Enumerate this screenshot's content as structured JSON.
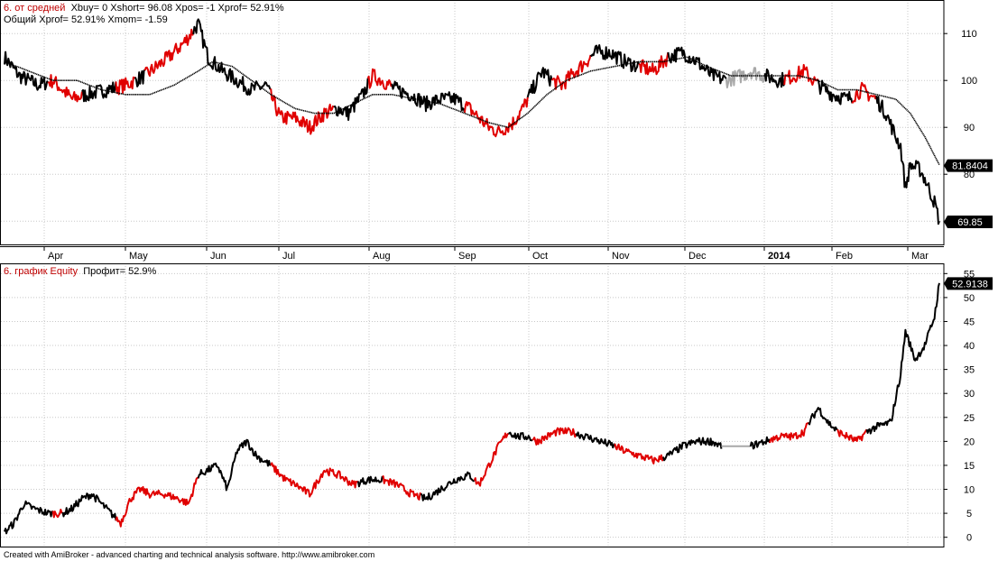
{
  "colors": {
    "background": "#ffffff",
    "grid": "#c8c8c8",
    "long_line": "#000000",
    "short_line": "#e00000",
    "flat_line": "#a8a8a8",
    "ma_line": "#000000",
    "legend_red": "#c00000",
    "value_tag_bg": "#000000",
    "value_tag_fg": "#ffffff"
  },
  "top_pane": {
    "title": "6. от средней",
    "params_line1": "Xbuy= 0  Xshort= 96.08  Xpos= -1  Xprof= 52.91%",
    "params_line2": "Общий Xprof= 52.91%  Xmom= -1.59"
  },
  "bottom_pane": {
    "title": "6. график Equity",
    "params": "Профит= 52.9%"
  },
  "footer": "Created with AmiBroker - advanced charting and technical analysis software. http://www.amibroker.com",
  "x_axis": {
    "labels": [
      "Apr",
      "May",
      "Jun",
      "Jul",
      "Aug",
      "Sep",
      "Oct",
      "Nov",
      "Dec",
      "2014",
      "Feb",
      "Mar"
    ]
  },
  "chart_data": [
    {
      "type": "line",
      "pane": "price",
      "x_labels": [
        "Apr",
        "May",
        "Jun",
        "Jul",
        "Aug",
        "Sep",
        "Oct",
        "Nov",
        "Dec",
        "2014",
        "Feb",
        "Mar"
      ],
      "ylim": [
        66,
        116
      ],
      "y_ticks": [
        70,
        80,
        90,
        100,
        110
      ],
      "grid": true,
      "value_tags": [
        "81.8404",
        "69.85"
      ],
      "series": [
        {
          "role": "price",
          "anchors": [
            [
              0,
              105
            ],
            [
              3,
              101
            ],
            [
              7,
              99
            ],
            [
              10,
              100
            ],
            [
              14,
              96
            ],
            [
              17,
              97
            ],
            [
              21,
              98
            ],
            [
              25,
              99
            ],
            [
              29,
              101
            ],
            [
              34,
              105
            ],
            [
              37,
              108
            ],
            [
              40,
              112
            ],
            [
              42,
              105
            ],
            [
              45,
              102
            ],
            [
              48,
              100
            ],
            [
              51,
              98
            ],
            [
              54,
              99
            ],
            [
              57,
              92
            ],
            [
              60,
              92
            ],
            [
              63,
              90
            ],
            [
              66,
              93
            ],
            [
              69,
              94
            ],
            [
              71,
              93
            ],
            [
              74,
              97
            ],
            [
              76,
              101
            ],
            [
              78,
              100
            ],
            [
              81,
              98
            ],
            [
              84,
              97
            ],
            [
              87,
              95
            ],
            [
              90,
              96
            ],
            [
              93,
              96
            ],
            [
              96,
              94
            ],
            [
              98,
              92
            ],
            [
              100,
              90
            ],
            [
              102,
              89
            ],
            [
              105,
              91
            ],
            [
              107,
              94
            ],
            [
              109,
              98
            ],
            [
              111,
              102
            ],
            [
              113,
              100
            ],
            [
              115,
              99
            ],
            [
              117,
              101
            ],
            [
              119,
              103
            ],
            [
              122,
              106
            ],
            [
              125,
              106
            ],
            [
              128,
              104
            ],
            [
              131,
              103
            ],
            [
              134,
              102
            ],
            [
              137,
              105
            ],
            [
              140,
              106
            ],
            [
              143,
              104
            ],
            [
              146,
              101
            ],
            [
              149,
              100
            ],
            [
              152,
              101
            ],
            [
              154,
              102
            ],
            [
              157,
              101
            ],
            [
              160,
              100
            ],
            [
              163,
              101
            ],
            [
              165,
              102
            ],
            [
              168,
              99
            ],
            [
              171,
              97
            ],
            [
              174,
              96
            ],
            [
              177,
              98
            ],
            [
              180,
              96
            ],
            [
              182,
              93
            ],
            [
              184,
              88
            ],
            [
              185,
              86
            ],
            [
              186,
              77
            ],
            [
              187,
              82
            ],
            [
              189,
              81
            ],
            [
              190,
              79
            ],
            [
              192,
              74
            ],
            [
              193,
              70
            ]
          ],
          "segments": [
            {
              "from": 0,
              "to": 9,
              "color": "long"
            },
            {
              "from": 9,
              "to": 16,
              "color": "short"
            },
            {
              "from": 16,
              "to": 23,
              "color": "long"
            },
            {
              "from": 23,
              "to": 27,
              "color": "short"
            },
            {
              "from": 27,
              "to": 29,
              "color": "long"
            },
            {
              "from": 29,
              "to": 39,
              "color": "short"
            },
            {
              "from": 39,
              "to": 55,
              "color": "long"
            },
            {
              "from": 55,
              "to": 68,
              "color": "short"
            },
            {
              "from": 68,
              "to": 75,
              "color": "long"
            },
            {
              "from": 75,
              "to": 80,
              "color": "short"
            },
            {
              "from": 80,
              "to": 95,
              "color": "long"
            },
            {
              "from": 95,
              "to": 108,
              "color": "short"
            },
            {
              "from": 108,
              "to": 113,
              "color": "long"
            },
            {
              "from": 113,
              "to": 121,
              "color": "short"
            },
            {
              "from": 121,
              "to": 131,
              "color": "long"
            },
            {
              "from": 131,
              "to": 137,
              "color": "short"
            },
            {
              "from": 137,
              "to": 149,
              "color": "long"
            },
            {
              "from": 149,
              "to": 157,
              "color": "flat"
            },
            {
              "from": 157,
              "to": 161,
              "color": "long"
            },
            {
              "from": 161,
              "to": 168,
              "color": "short"
            },
            {
              "from": 168,
              "to": 175,
              "color": "long"
            },
            {
              "from": 175,
              "to": 180,
              "color": "short"
            },
            {
              "from": 180,
              "to": 193,
              "color": "long"
            }
          ]
        },
        {
          "role": "moving_average",
          "anchors": [
            [
              0,
              104
            ],
            [
              5,
              102
            ],
            [
              10,
              100
            ],
            [
              15,
              100
            ],
            [
              20,
              98
            ],
            [
              25,
              97
            ],
            [
              30,
              97
            ],
            [
              35,
              99
            ],
            [
              40,
              102
            ],
            [
              43,
              104
            ],
            [
              47,
              103
            ],
            [
              51,
              100
            ],
            [
              55,
              97
            ],
            [
              60,
              94
            ],
            [
              64,
              93
            ],
            [
              68,
              93
            ],
            [
              72,
              95
            ],
            [
              76,
              97
            ],
            [
              80,
              97
            ],
            [
              85,
              96
            ],
            [
              90,
              95
            ],
            [
              95,
              93
            ],
            [
              100,
              91
            ],
            [
              104,
              90
            ],
            [
              108,
              93
            ],
            [
              112,
              97
            ],
            [
              116,
              100
            ],
            [
              121,
              102
            ],
            [
              126,
              103
            ],
            [
              131,
              104
            ],
            [
              136,
              104
            ],
            [
              141,
              105
            ],
            [
              145,
              103
            ],
            [
              150,
              101
            ],
            [
              155,
              101
            ],
            [
              160,
              101
            ],
            [
              164,
              101
            ],
            [
              168,
              100
            ],
            [
              172,
              98
            ],
            [
              176,
              98
            ],
            [
              180,
              97
            ],
            [
              184,
              96
            ],
            [
              187,
              93
            ],
            [
              190,
              88
            ],
            [
              193,
              82
            ]
          ]
        }
      ]
    },
    {
      "type": "line",
      "pane": "equity",
      "x_labels": [
        "Apr",
        "May",
        "Jun",
        "Jul",
        "Aug",
        "Sep",
        "Oct",
        "Nov",
        "Dec",
        "2014",
        "Feb",
        "Mar"
      ],
      "ylim": [
        -1,
        56
      ],
      "y_ticks": [
        0,
        5,
        10,
        15,
        20,
        25,
        30,
        35,
        40,
        45,
        50,
        55
      ],
      "grid": true,
      "value_tags": [
        "52.9138"
      ],
      "series": [
        {
          "role": "equity",
          "anchors": [
            [
              0,
              1
            ],
            [
              2,
              3
            ],
            [
              4,
              7
            ],
            [
              6,
              6
            ],
            [
              9,
              5
            ],
            [
              12,
              5
            ],
            [
              14,
              6
            ],
            [
              16,
              8
            ],
            [
              18,
              9
            ],
            [
              20,
              7
            ],
            [
              22,
              5
            ],
            [
              24,
              3
            ],
            [
              26,
              8
            ],
            [
              28,
              10
            ],
            [
              30,
              9
            ],
            [
              33,
              9
            ],
            [
              36,
              8
            ],
            [
              38,
              7
            ],
            [
              40,
              13
            ],
            [
              42,
              14
            ],
            [
              44,
              15
            ],
            [
              46,
              10
            ],
            [
              48,
              18
            ],
            [
              50,
              20
            ],
            [
              52,
              17
            ],
            [
              55,
              15
            ],
            [
              58,
              12
            ],
            [
              60,
              11
            ],
            [
              63,
              9
            ],
            [
              66,
              14
            ],
            [
              69,
              13
            ],
            [
              72,
              11
            ],
            [
              75,
              12
            ],
            [
              78,
              12
            ],
            [
              81,
              11
            ],
            [
              84,
              9
            ],
            [
              87,
              8
            ],
            [
              90,
              10
            ],
            [
              93,
              12
            ],
            [
              96,
              13
            ],
            [
              98,
              11
            ],
            [
              100,
              15
            ],
            [
              102,
              19
            ],
            [
              104,
              22
            ],
            [
              106,
              21
            ],
            [
              108,
              21
            ],
            [
              110,
              20
            ],
            [
              112,
              21
            ],
            [
              114,
              22
            ],
            [
              117,
              22
            ],
            [
              120,
              21
            ],
            [
              123,
              20
            ],
            [
              126,
              19
            ],
            [
              128,
              18
            ],
            [
              131,
              17
            ],
            [
              134,
              16
            ],
            [
              137,
              17
            ],
            [
              140,
              19
            ],
            [
              143,
              20
            ],
            [
              146,
              20
            ],
            [
              148,
              19
            ],
            [
              154,
              19
            ],
            [
              157,
              20
            ],
            [
              160,
              21
            ],
            [
              163,
              21
            ],
            [
              165,
              22
            ],
            [
              168,
              27
            ],
            [
              170,
              24
            ],
            [
              172,
              22
            ],
            [
              174,
              21
            ],
            [
              176,
              20
            ],
            [
              178,
              22
            ],
            [
              180,
              23
            ],
            [
              183,
              24
            ],
            [
              185,
              34
            ],
            [
              186,
              43
            ],
            [
              188,
              37
            ],
            [
              190,
              40
            ],
            [
              192,
              46
            ],
            [
              193,
              53
            ]
          ],
          "segments": [
            {
              "from": 0,
              "to": 10,
              "color": "long"
            },
            {
              "from": 10,
              "to": 12,
              "color": "short"
            },
            {
              "from": 12,
              "to": 23,
              "color": "long"
            },
            {
              "from": 23,
              "to": 40,
              "color": "short"
            },
            {
              "from": 40,
              "to": 55,
              "color": "long"
            },
            {
              "from": 55,
              "to": 73,
              "color": "short"
            },
            {
              "from": 73,
              "to": 78,
              "color": "long"
            },
            {
              "from": 78,
              "to": 86,
              "color": "short"
            },
            {
              "from": 86,
              "to": 97,
              "color": "long"
            },
            {
              "from": 97,
              "to": 104,
              "color": "short"
            },
            {
              "from": 104,
              "to": 109,
              "color": "long"
            },
            {
              "from": 109,
              "to": 118,
              "color": "short"
            },
            {
              "from": 118,
              "to": 126,
              "color": "long"
            },
            {
              "from": 126,
              "to": 136,
              "color": "short"
            },
            {
              "from": 136,
              "to": 148,
              "color": "long"
            },
            {
              "from": 148,
              "to": 154,
              "color": "flat"
            },
            {
              "from": 154,
              "to": 158,
              "color": "long"
            },
            {
              "from": 158,
              "to": 166,
              "color": "short"
            },
            {
              "from": 166,
              "to": 172,
              "color": "long"
            },
            {
              "from": 172,
              "to": 178,
              "color": "short"
            },
            {
              "from": 178,
              "to": 193,
              "color": "long"
            }
          ]
        }
      ]
    }
  ]
}
